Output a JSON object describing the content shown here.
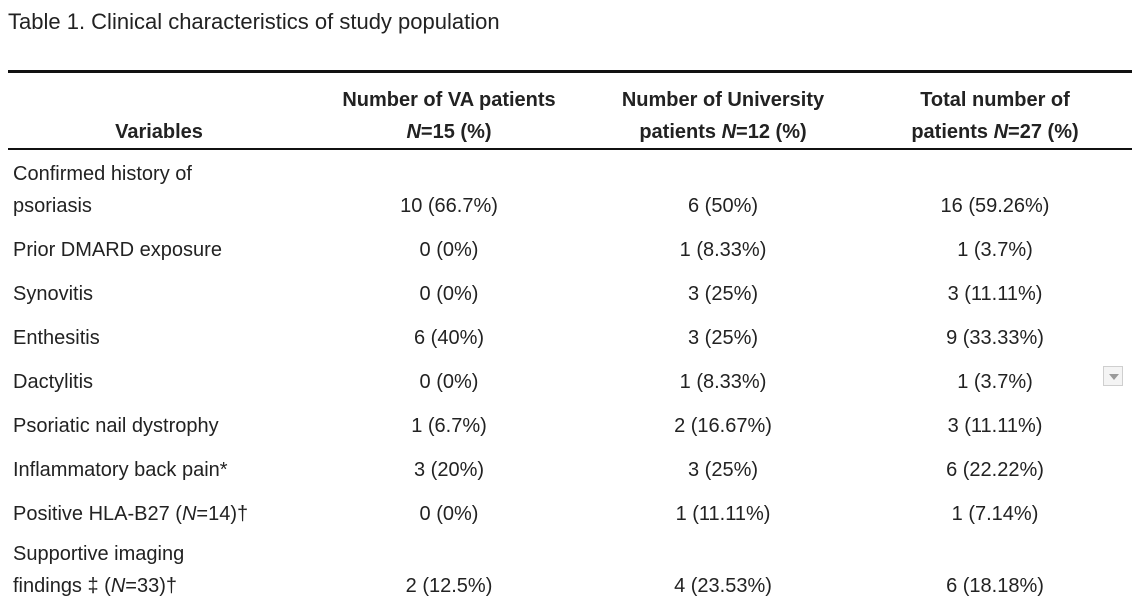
{
  "caption": "Table 1. Clinical characteristics of study population",
  "header": {
    "variables": "Variables",
    "va_line1": "Number of VA patients",
    "va_n": "N",
    "va_rest": "=15 (%)",
    "uni_line1": "Number of University",
    "uni_pre": "patients ",
    "uni_n": "N",
    "uni_rest": "=12 (%)",
    "total_line1": "Total number of",
    "total_pre": "patients ",
    "total_n": "N",
    "total_rest": "=27 (%)"
  },
  "rows": [
    {
      "label_line1": "Confirmed history of",
      "label_line2": "psoriasis",
      "va": "10 (66.7%)",
      "uni": "6 (50%)",
      "total": "16 (59.26%)"
    },
    {
      "label": "Prior DMARD exposure",
      "va": "0 (0%)",
      "uni": "1 (8.33%)",
      "total": "1 (3.7%)"
    },
    {
      "label": "Synovitis",
      "va": "0 (0%)",
      "uni": "3 (25%)",
      "total": "3 (11.11%)"
    },
    {
      "label": "Enthesitis",
      "va": "6 (40%)",
      "uni": "3 (25%)",
      "total": "9 (33.33%)"
    },
    {
      "label": "Dactylitis",
      "va": "0 (0%)",
      "uni": "1 (8.33%)",
      "total": "1 (3.7%)"
    },
    {
      "label": "Psoriatic nail dystrophy",
      "va": "1 (6.7%)",
      "uni": "2 (16.67%)",
      "total": "3 (11.11%)"
    },
    {
      "label": "Inflammatory back pain*",
      "va": "3 (20%)",
      "uni": "3 (25%)",
      "total": "6 (22.22%)"
    },
    {
      "label_pre": "Positive HLA-B27 (",
      "label_n": "N",
      "label_post": "=14)†",
      "va": "0 (0%)",
      "uni": "1 (11.11%)",
      "total": "1 (7.14%)"
    },
    {
      "label_line1": "Supportive imaging",
      "label_line2_pre": "findings ‡ (",
      "label_line2_n": "N",
      "label_line2_post": "=33)†",
      "va": "2 (12.5%)",
      "uni": "4 (23.53%)",
      "total": "6 (18.18%)"
    }
  ],
  "scroll_button_icon": "chevron-down-icon"
}
